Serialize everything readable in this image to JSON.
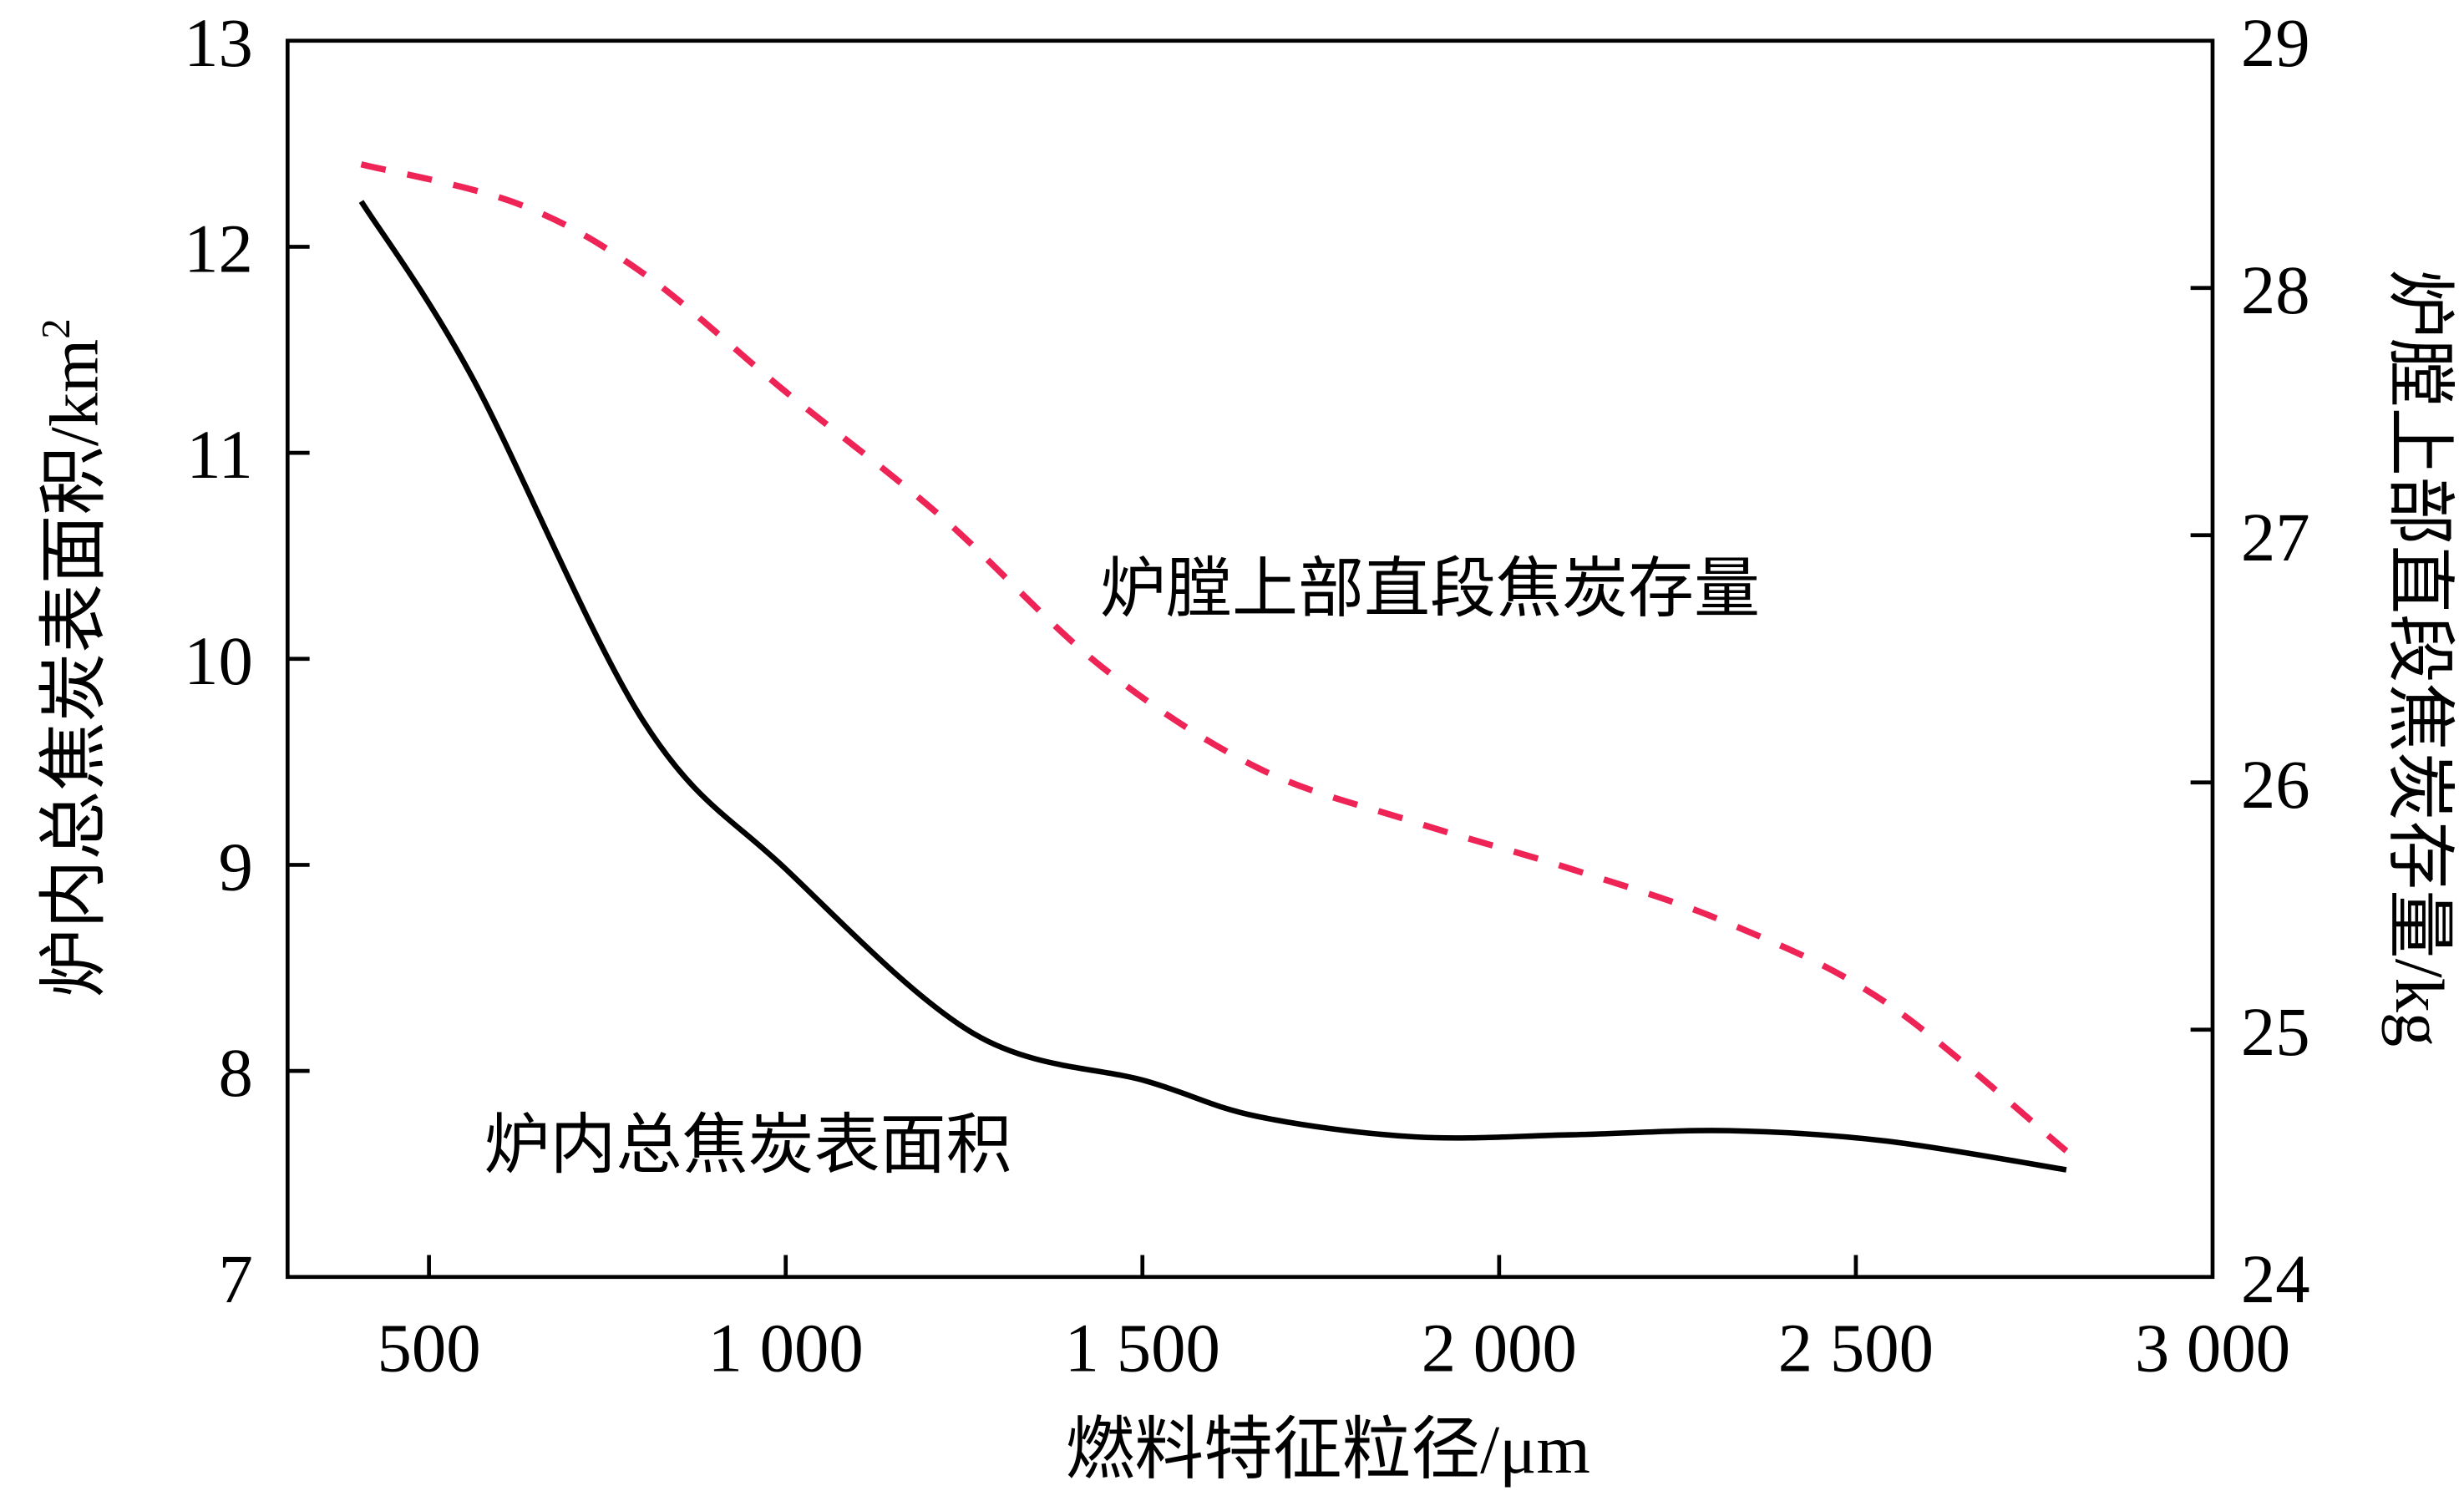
{
  "chart_data": {
    "type": "line",
    "title": "",
    "xlabel": "燃料特征粒径/μm",
    "ylabel_left": "炉内总焦炭表面积/km²",
    "ylabel_left_base": "炉内总焦炭表面积/km",
    "ylabel_left_sup": "2",
    "ylabel_right": "炉膛上部直段焦炭存量/kg",
    "xlim": [
      300,
      3000
    ],
    "ylim_left": [
      7,
      13
    ],
    "ylim_right": [
      24,
      29
    ],
    "x_ticks": [
      500,
      1000,
      1500,
      2000,
      2500,
      3000
    ],
    "x_tick_labels": [
      "500",
      "1 000",
      "1 500",
      "2 000",
      "2 500",
      "3 000"
    ],
    "y_left_ticks": [
      7,
      8,
      9,
      10,
      11,
      12,
      13
    ],
    "y_left_tick_labels": [
      "7",
      "8",
      "9",
      "10",
      "11",
      "12",
      "13"
    ],
    "y_right_ticks": [
      24,
      25,
      26,
      27,
      28,
      29
    ],
    "y_right_tick_labels": [
      "24",
      "25",
      "26",
      "27",
      "28",
      "29"
    ],
    "grid": false,
    "series": [
      {
        "name": "炉内总焦炭表面积",
        "axis": "left",
        "style": "solid",
        "color": "#000000",
        "x": [
          405,
          560,
          800,
          1000,
          1264,
          1506,
          1660,
          1881,
          2101,
          2322,
          2542,
          2795
        ],
        "y": [
          12.22,
          11.37,
          9.7,
          8.98,
          8.18,
          7.95,
          7.78,
          7.68,
          7.69,
          7.71,
          7.66,
          7.52
        ]
      },
      {
        "name": "炉膛上部直段焦炭存量",
        "axis": "right",
        "style": "dashed",
        "color": "#ee2456",
        "x": [
          405,
          625,
          800,
          1000,
          1220,
          1442,
          1661,
          1881,
          2101,
          2322,
          2542,
          2795
        ],
        "y": [
          28.5,
          28.34,
          28.06,
          27.58,
          27.07,
          26.47,
          26.06,
          25.84,
          25.65,
          25.43,
          25.11,
          24.51
        ]
      }
    ],
    "annotations": [
      {
        "text": "炉膛上部直段焦炭存量",
        "series": 1
      },
      {
        "text": "炉内总焦炭表面积",
        "series": 0
      }
    ]
  }
}
